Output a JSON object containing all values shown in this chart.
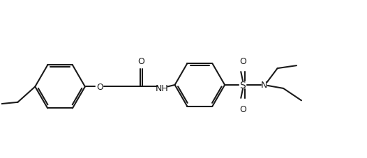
{
  "background_color": "#ffffff",
  "line_color": "#1a1a1a",
  "line_width": 1.5,
  "font_size": 9,
  "fig_width": 5.26,
  "fig_height": 2.28,
  "dpi": 100,
  "xlim": [
    0,
    10.52
  ],
  "ylim": [
    0,
    4.56
  ]
}
